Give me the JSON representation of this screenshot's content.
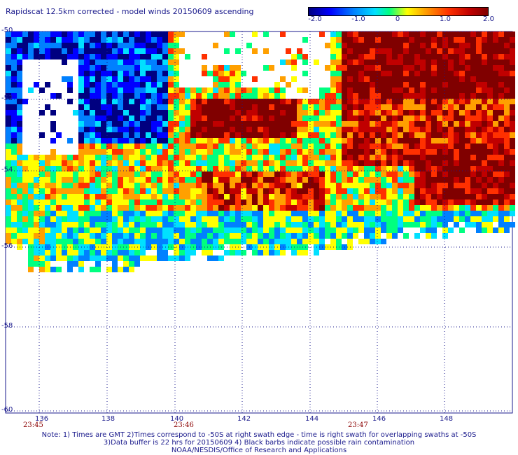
{
  "title": "Rapidscat 12.5km corrected - model winds 20150609 ascending",
  "colorbar": {
    "ticks": [
      "-2.0",
      "-1.0",
      "0",
      "1.0",
      "2.0"
    ],
    "colors": [
      "#000080",
      "#0000ff",
      "#0080ff",
      "#00e0ff",
      "#00ff80",
      "#ffff00",
      "#ffa000",
      "#ff3000",
      "#c00000",
      "#800000"
    ]
  },
  "lat_labels": [
    "-50",
    "-52",
    "-54",
    "-56",
    "-58",
    "-60"
  ],
  "lon_labels": [
    "136",
    "138",
    "140",
    "142",
    "144",
    "146",
    "148"
  ],
  "time_labels": [
    "23:45",
    "23:46",
    "23:47"
  ],
  "notes": [
    "Note: 1) Times are GMT 2)Times correspond to -50S at right swath edge - time is right swath for overlapping swaths at -50S",
    "3)Data buffer is 22 hrs for 20150609 4) Black barbs indicate possible rain contamination",
    "NOAA/NESDIS/Office of Research and Applications"
  ]
}
